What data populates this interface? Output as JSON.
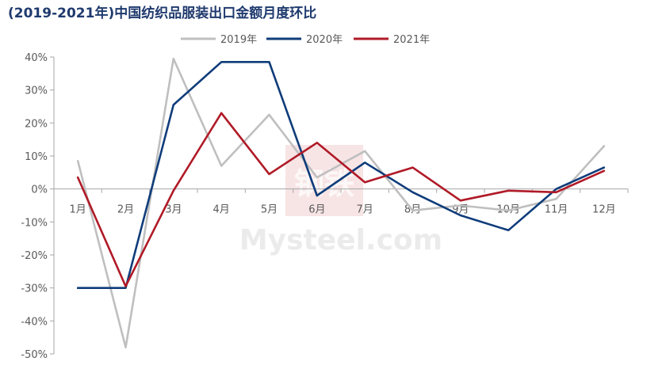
{
  "title": "(2019-2021年)中国纺织品服装出口金额月度环比",
  "watermark": {
    "brand": "Mysteel.com",
    "badge": "钢铁"
  },
  "chart_data": {
    "type": "line",
    "title": "(2019-2021年)中国纺织品服装出口金额月度环比",
    "xlabel": "",
    "ylabel": "",
    "categories": [
      "1月",
      "2月",
      "3月",
      "4月",
      "5月",
      "6月",
      "7月",
      "8月",
      "9月",
      "10月",
      "11月",
      "12月"
    ],
    "ylim": [
      -50,
      40
    ],
    "yticks": [
      40,
      30,
      20,
      10,
      0,
      -10,
      -20,
      -30,
      -40,
      -50
    ],
    "ytick_labels": [
      "40%",
      "30%",
      "20%",
      "10%",
      "0%",
      "-10%",
      "-20%",
      "-30%",
      "-40%",
      "-50%"
    ],
    "grid": false,
    "legend_position": "top",
    "series": [
      {
        "name": "2019年",
        "color": "#bfbfbf",
        "values": [
          8.5,
          -48,
          39.5,
          7,
          22.5,
          3.5,
          11.5,
          -6.5,
          -5,
          -6.5,
          -3,
          13
        ]
      },
      {
        "name": "2020年",
        "color": "#0f3c7a",
        "values": [
          -30,
          -30,
          25.5,
          38.5,
          38.5,
          -2,
          8,
          -1,
          -8,
          -12.5,
          0,
          6.5
        ]
      },
      {
        "name": "2021年",
        "color": "#b01a27",
        "values": [
          3.5,
          -29.5,
          -0.5,
          23,
          4.5,
          14,
          2,
          6.5,
          -3.5,
          -0.5,
          -1,
          5.5
        ]
      }
    ]
  }
}
